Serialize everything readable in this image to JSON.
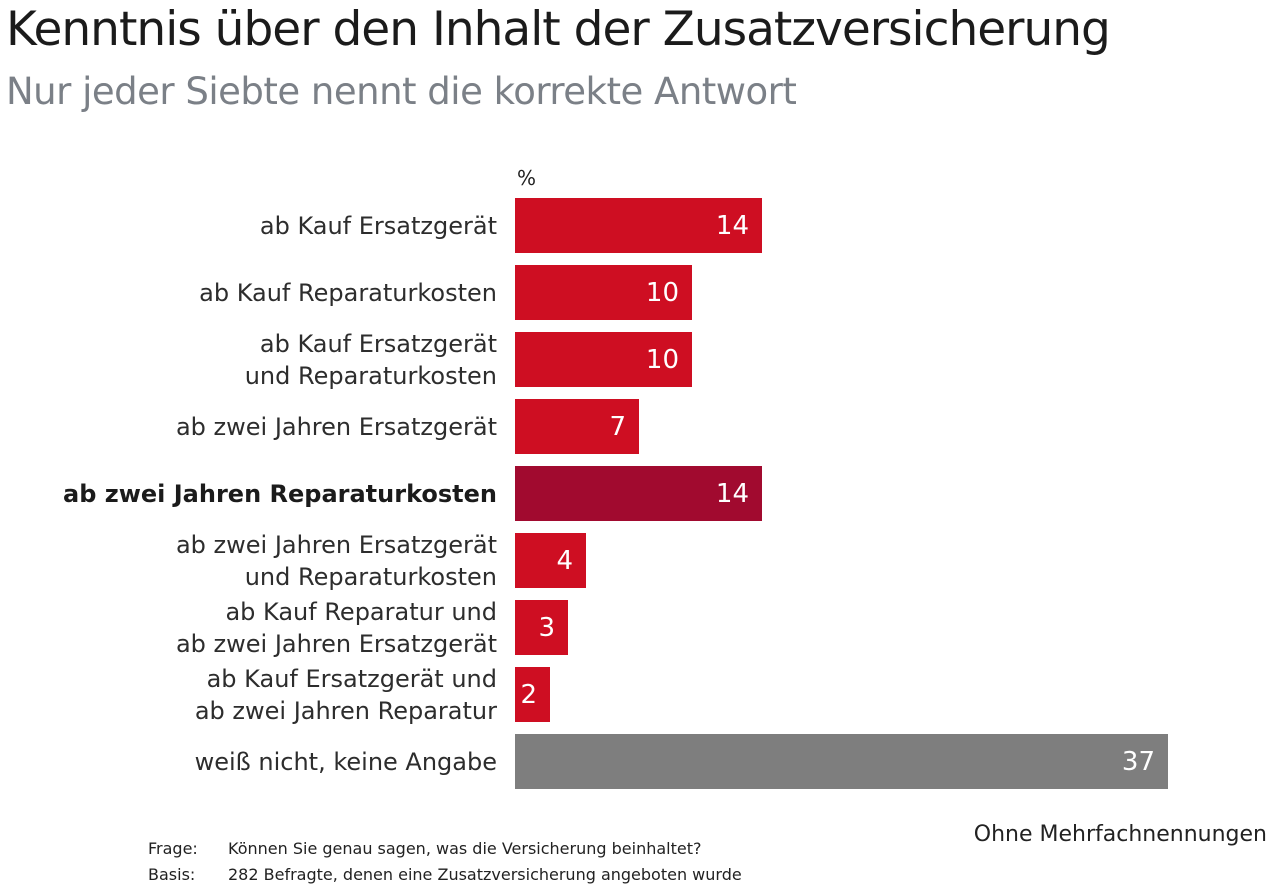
{
  "title": "Kenntnis über den Inhalt der Zusatzversicherung",
  "subtitle": "Nur jeder Siebte nennt die korrekte Antwort",
  "unit_label": "%",
  "footer": {
    "frage_label": "Frage:",
    "frage_text": "Können Sie genau sagen, was die Versicherung beinhaltet?",
    "basis_label": "Basis:",
    "basis_text": "282 Befragte, denen eine Zusatzversicherung angeboten wurde",
    "note": "Ohne Mehrfachnennungen"
  },
  "colors": {
    "bar_red": "#ce0e22",
    "bar_dark_red": "#a10a2f",
    "bar_gray": "#7e7e7e",
    "title_text": "#1b1b1b",
    "subtitle_text": "#7b8087",
    "value_text": "#ffffff"
  },
  "chart_data": {
    "type": "bar",
    "orientation": "horizontal",
    "unit": "%",
    "xlim": [
      0,
      40
    ],
    "grid": false,
    "legend": false,
    "highlight_category": "ab zwei Jahren Reparaturkosten",
    "categories": [
      "ab Kauf Ersatzgerät",
      "ab Kauf Reparaturkosten",
      "ab Kauf Ersatzgerät und Reparaturkosten",
      "ab zwei Jahren Ersatzgerät",
      "ab zwei Jahren Reparaturkosten",
      "ab zwei Jahren Ersatzgerät und Reparaturkosten",
      "ab Kauf Reparatur und ab zwei Jahren Ersatzgerät",
      "ab Kauf Ersatzgerät und ab zwei Jahren Reparatur",
      "weiß nicht, keine Angabe"
    ],
    "values": [
      14,
      10,
      10,
      7,
      14,
      4,
      3,
      2,
      37
    ],
    "rows": [
      {
        "label": "ab Kauf Ersatzgerät",
        "value": 14,
        "style": "red",
        "bold": false
      },
      {
        "label": "ab Kauf Reparaturkosten",
        "value": 10,
        "style": "red",
        "bold": false
      },
      {
        "label": "ab Kauf Ersatzgerät\nund Reparaturkosten",
        "value": 10,
        "style": "red",
        "bold": false
      },
      {
        "label": "ab zwei Jahren Ersatzgerät",
        "value": 7,
        "style": "red",
        "bold": false
      },
      {
        "label": "ab zwei Jahren Reparaturkosten",
        "value": 14,
        "style": "darkred",
        "bold": true
      },
      {
        "label": "ab zwei Jahren Ersatzgerät\nund Reparaturkosten",
        "value": 4,
        "style": "red",
        "bold": false
      },
      {
        "label": "ab Kauf Reparatur und\nab zwei Jahren Ersatzgerät",
        "value": 3,
        "style": "red",
        "bold": false
      },
      {
        "label": "ab Kauf Ersatzgerät und\nab zwei Jahren Reparatur",
        "value": 2,
        "style": "red",
        "bold": false
      },
      {
        "label": "weiß nicht, keine Angabe",
        "value": 37,
        "style": "gray",
        "bold": false
      }
    ]
  }
}
